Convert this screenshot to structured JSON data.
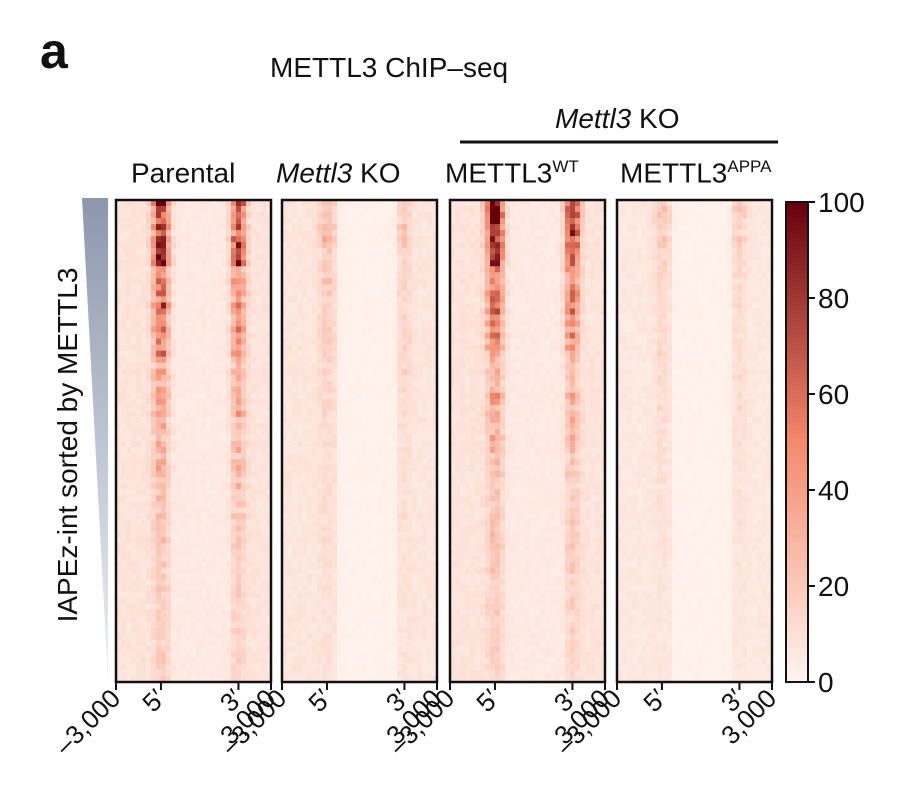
{
  "figure": {
    "panel_letter": "a",
    "title": "METTL3 ChIP–seq",
    "group_label_italic": "Mettl3",
    "group_label_rest": " KO"
  },
  "chart_data": {
    "type": "heatmap",
    "title": "METTL3 ChIP–seq",
    "ylabel": "IAPEz-int sorted by METTL3",
    "x_ticks": [
      "–3,000",
      "5′",
      "3′",
      "3,000"
    ],
    "panels": [
      {
        "label_main": "Parental",
        "label_italic": "",
        "label_sup": "",
        "peak_5prime": 92,
        "peak_3prime": 72,
        "background": 8,
        "interior": 5
      },
      {
        "label_main": " KO",
        "label_italic": "Mettl3",
        "label_sup": "",
        "peak_5prime": 22,
        "peak_3prime": 14,
        "background": 7,
        "interior": 2
      },
      {
        "label_main": "METTL3",
        "label_italic": "",
        "label_sup": "WT",
        "peak_5prime": 88,
        "peak_3prime": 68,
        "background": 8,
        "interior": 5
      },
      {
        "label_main": "METTL3",
        "label_italic": "",
        "label_sup": "APPA",
        "peak_5prime": 14,
        "peak_3prime": 12,
        "background": 6,
        "interior": 2
      }
    ],
    "colorbar": {
      "min": 0,
      "max": 100,
      "ticks": [
        0,
        20,
        40,
        60,
        80,
        100
      ],
      "low_color": "#fff5f0",
      "mid_color": "#f4896c",
      "high_color": "#67000d"
    },
    "legend_placement": "right"
  }
}
